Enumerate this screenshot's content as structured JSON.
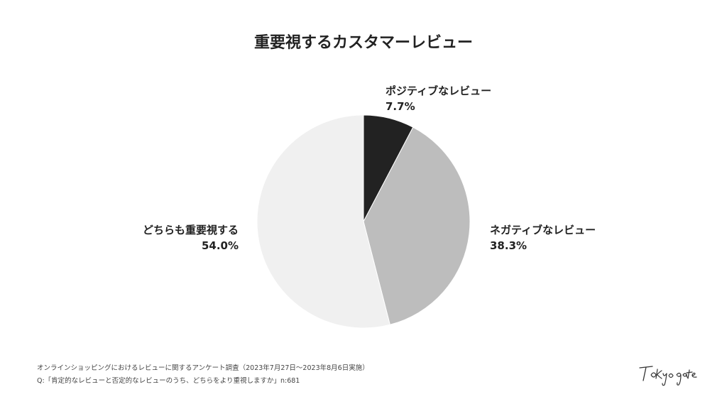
{
  "chart_data": {
    "type": "pie",
    "title": "重要視するカスタマーレビュー",
    "slices": [
      {
        "label": "ポジティブなレビュー",
        "value": 7.7,
        "value_label": "7.7%",
        "color": "#222222"
      },
      {
        "label": "ネガティブなレビュー",
        "value": 38.3,
        "value_label": "38.3%",
        "color": "#bdbdbd"
      },
      {
        "label": "どちらも重要視する",
        "value": 54.0,
        "value_label": "54.0%",
        "color": "#f0f0f0"
      }
    ],
    "legend": "none"
  },
  "footnotes": {
    "line1": "オンラインショッピングにおけるレビューに関するアンケート調査（2023年7月27日〜2023年8月6日実施）",
    "line2": "Q:「肯定的なレビューと否定的なレビューのうち、どちらをより重視しますか」n:681"
  },
  "logo_text": "Tokyo gate"
}
